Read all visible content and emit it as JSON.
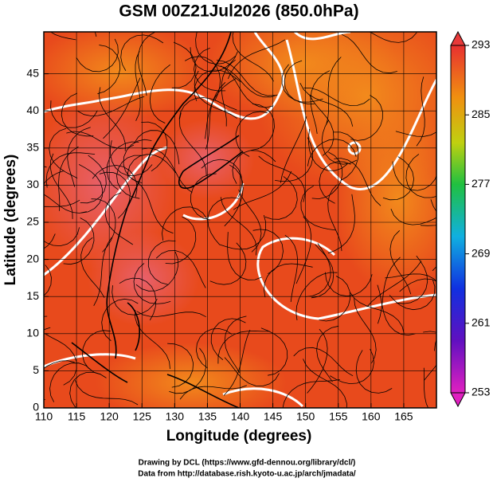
{
  "chart_data": {
    "type": "map",
    "title": "GSM 00Z21Jul2026 (850.0hPa)",
    "x_label": "Longitude (degrees)",
    "y_label": "Latitude  (degrees)",
    "xlim": [
      110,
      170
    ],
    "xticks": [
      110,
      115,
      120,
      125,
      130,
      135,
      140,
      145,
      150,
      155,
      160,
      165
    ],
    "ylim": [
      0,
      50
    ],
    "yticks": [
      0,
      5,
      10,
      15,
      20,
      25,
      30,
      35,
      40,
      45
    ],
    "grid": true,
    "colorbar": {
      "lim": [
        253,
        293
      ],
      "ticks": [
        253,
        261,
        269,
        277,
        285,
        293
      ]
    },
    "credits": [
      "Drawing by DCL (https://www.gfd-dennou.org/library/dcl/)",
      "Data from http://database.rish.kyoto-u.ac.jp/arch/jmadata/"
    ]
  }
}
